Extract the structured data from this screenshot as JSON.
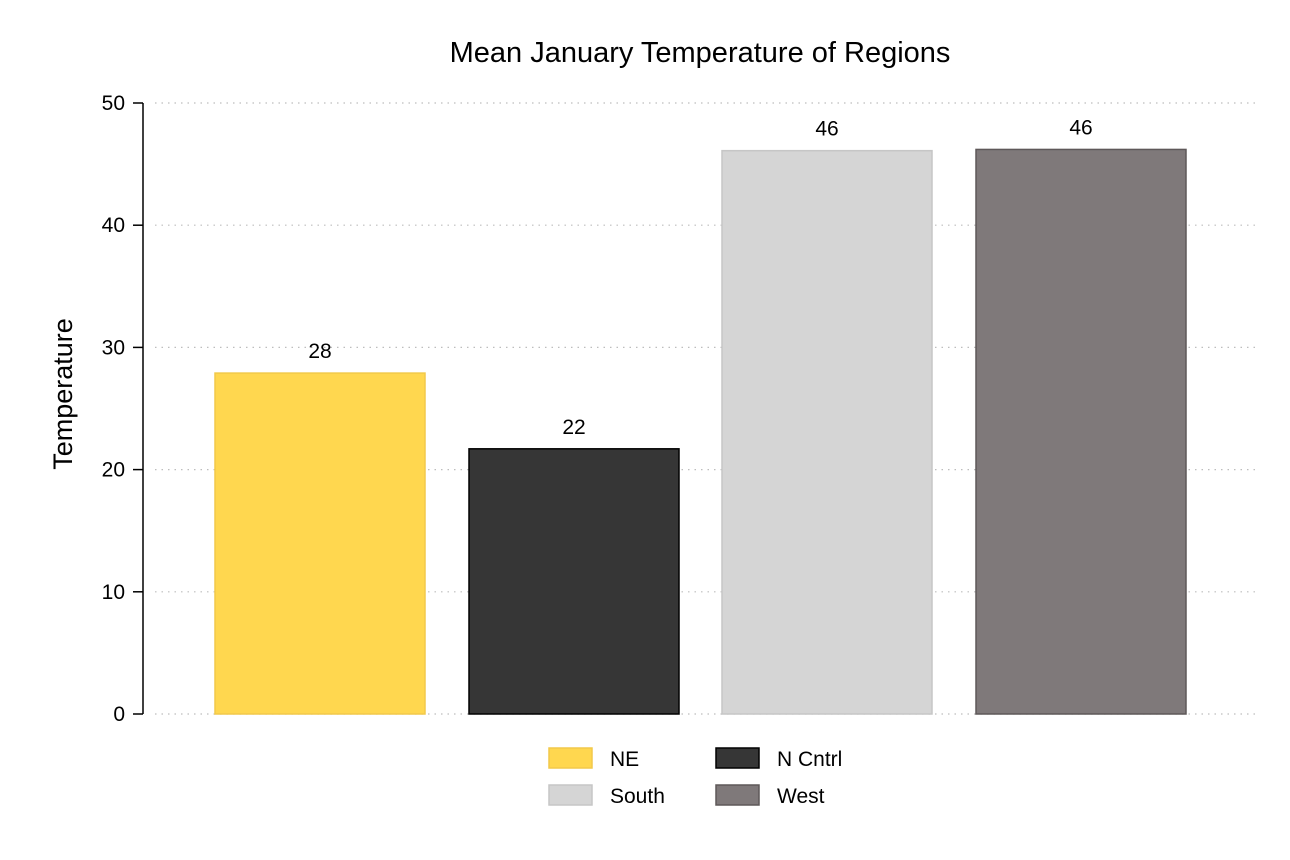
{
  "chart_data": {
    "type": "bar",
    "title": "Mean January Temperature of Regions",
    "xlabel": "",
    "ylabel": "Temperature",
    "ylim": [
      0,
      50
    ],
    "yticks": [
      0,
      10,
      20,
      30,
      40,
      50
    ],
    "grid": true,
    "legend_position": "bottom",
    "series": [
      {
        "name": "NE",
        "value": 27.9,
        "label": "28",
        "color": "#ffd74f",
        "stroke": "#f2c94a"
      },
      {
        "name": "N Cntrl",
        "value": 21.7,
        "label": "22",
        "color": "#363636",
        "stroke": "#000000"
      },
      {
        "name": "South",
        "value": 46.1,
        "label": "46",
        "color": "#d5d5d5",
        "stroke": "#c6c6c6"
      },
      {
        "name": "West",
        "value": 46.2,
        "label": "46",
        "color": "#7f797a",
        "stroke": "#5e5859"
      }
    ]
  }
}
